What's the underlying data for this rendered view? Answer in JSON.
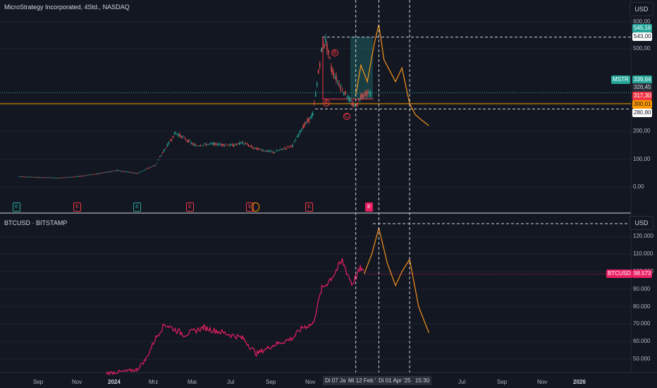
{
  "top_title": "MicroStrategy Incorporated, 4Std., NASDAQ",
  "bottom_title": "BTCUSD · BITSTAMP",
  "currency_top": "USD",
  "currency_bottom": "USD",
  "price_tags": {
    "mstr_symbol": "MSTR",
    "mstr_price": "339,64",
    "t545": "545,16",
    "t543": "543,00",
    "t326": "326,45",
    "t317": "317,30",
    "t300": "300,01",
    "t280": "280,80",
    "btc_symbol": "BTCUSD",
    "btc_price": "98.573"
  },
  "waves": {
    "a": "A",
    "b": "B",
    "c": "C"
  },
  "events": [
    {
      "label": "E"
    },
    {
      "label": "E"
    },
    {
      "label": "E"
    },
    {
      "label": "E"
    },
    {
      "label": "E"
    },
    {
      "label": "E"
    },
    {
      "label": "E"
    }
  ],
  "x_axis_ticks": [
    "Sep",
    "Nov",
    "2024",
    "Mrz",
    "Mai",
    "Jul",
    "Sep",
    "Nov",
    "Jul",
    "Sep",
    "Nov",
    "2026"
  ],
  "cursor_labels": [
    "Di 07 Ja",
    "Mi 12 Feb '2",
    "Di 01 Apr '25",
    "15:30"
  ],
  "colors": {
    "background": "#131722",
    "mstr_candles_up": "#26a69a",
    "mstr_candles_down": "#ef5350",
    "btc_line": "#e91e63",
    "projection": "#f7931a",
    "teal_tag": "#26a69a",
    "red_tag": "#f23645",
    "orange_tag": "#ff9800"
  },
  "chart_data": [
    {
      "type": "line",
      "title": "MicroStrategy Incorporated, 4Std., NASDAQ",
      "ylim": [
        -60,
        600
      ],
      "y_ticks": [
        0,
        100,
        200,
        500,
        600
      ],
      "x": [
        "2023-08-01",
        "2023-09-01",
        "2023-10-01",
        "2023-11-01",
        "2023-12-01",
        "2024-01-01",
        "2024-02-01",
        "2024-03-01",
        "2024-03-15",
        "2024-04-01",
        "2024-05-01",
        "2024-06-01",
        "2024-07-01",
        "2024-07-15",
        "2024-08-01",
        "2024-09-01",
        "2024-10-01",
        "2024-10-15",
        "2024-11-01",
        "2024-11-15",
        "2024-11-21",
        "2024-12-01",
        "2024-12-15",
        "2025-01-01",
        "2025-01-07",
        "2025-01-15",
        "2025-02-01"
      ],
      "series": [
        {
          "name": "MSTR",
          "values": [
            38,
            35,
            33,
            38,
            48,
            60,
            50,
            80,
            135,
            195,
            150,
            155,
            150,
            160,
            140,
            125,
            150,
            210,
            260,
            500,
            530,
            420,
            360,
            300,
            285,
            330,
            339.64
          ]
        },
        {
          "name": "",
          "x": [
            "2025-01-07",
            "2025-01-15",
            "2025-01-25",
            "2025-02-05",
            "2025-02-12",
            "2025-02-20",
            "2025-03-01",
            "2025-03-10",
            "2025-03-20",
            "2025-04-01",
            "2025-04-10",
            "2025-04-20",
            "2025-05-01"
          ],
          "values": [
            330,
            440,
            380,
            520,
            590,
            460,
            420,
            380,
            430,
            300,
            260,
            240,
            220
          ]
        }
      ],
      "levels": [
        545.16,
        543.0,
        339.64,
        326.45,
        317.3,
        300.01,
        280.8
      ]
    },
    {
      "type": "line",
      "title": "BTCUSD · BITSTAMP",
      "ylim": [
        40000,
        128000
      ],
      "y_ticks": [
        50000,
        60000,
        70000,
        80000,
        90000,
        100000,
        110000,
        120000
      ],
      "series": [
        {
          "name": "BTCUSD",
          "x": [
            "2023-12-15",
            "2024-01-15",
            "2024-02-01",
            "2024-02-15",
            "2024-03-01",
            "2024-03-15",
            "2024-04-15",
            "2024-05-15",
            "2024-06-15",
            "2024-07-15",
            "2024-08-05",
            "2024-09-01",
            "2024-10-01",
            "2024-10-15",
            "2024-11-01",
            "2024-11-15",
            "2024-12-01",
            "2024-12-17",
            "2025-01-01",
            "2025-01-15",
            "2025-01-20"
          ],
          "values": [
            42000,
            43000,
            44000,
            50000,
            62000,
            70000,
            64000,
            68000,
            65000,
            62000,
            53000,
            58000,
            62000,
            68000,
            70000,
            90000,
            97000,
            106000,
            93000,
            102000,
            98573
          ]
        },
        {
          "name": "",
          "x": [
            "2025-01-20",
            "2025-02-01",
            "2025-02-12",
            "2025-02-25",
            "2025-03-10",
            "2025-03-20",
            "2025-04-01",
            "2025-04-15",
            "2025-05-01"
          ],
          "values": [
            98573,
            110000,
            125000,
            105000,
            92000,
            100000,
            107000,
            80000,
            65000
          ]
        }
      ]
    }
  ]
}
